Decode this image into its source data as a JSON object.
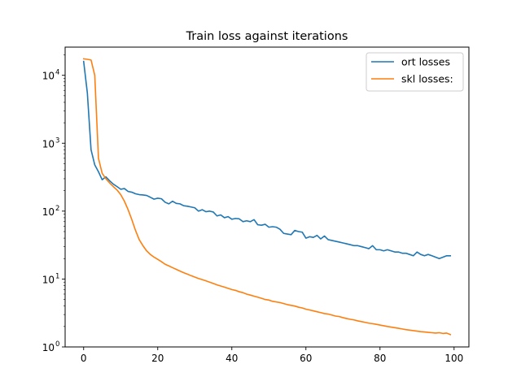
{
  "chart_data": {
    "type": "line",
    "title": "Train loss against iterations",
    "xlabel": "",
    "ylabel": "",
    "xlim": [
      -5,
      104
    ],
    "ylim": [
      1,
      26000
    ],
    "yscale": "log",
    "grid": false,
    "legend_position": "top-right",
    "x_ticks": [
      0,
      20,
      40,
      60,
      80,
      100
    ],
    "y_ticks": [
      {
        "value": 1,
        "base": "10",
        "exp": "0"
      },
      {
        "value": 10,
        "base": "10",
        "exp": "1"
      },
      {
        "value": 100,
        "base": "10",
        "exp": "2"
      },
      {
        "value": 1000,
        "base": "10",
        "exp": "3"
      },
      {
        "value": 10000,
        "base": "10",
        "exp": "4"
      }
    ],
    "series": [
      {
        "name": "ort losses",
        "color": "#1f77b4",
        "x": [
          0,
          1,
          2,
          3,
          4,
          5,
          6,
          7,
          8,
          9,
          10,
          11,
          12,
          13,
          14,
          15,
          16,
          17,
          18,
          19,
          20,
          21,
          22,
          23,
          24,
          25,
          26,
          27,
          28,
          29,
          30,
          31,
          32,
          33,
          34,
          35,
          36,
          37,
          38,
          39,
          40,
          41,
          42,
          43,
          44,
          45,
          46,
          47,
          48,
          49,
          50,
          51,
          52,
          53,
          54,
          55,
          56,
          57,
          58,
          59,
          60,
          61,
          62,
          63,
          64,
          65,
          66,
          67,
          68,
          69,
          70,
          71,
          72,
          73,
          74,
          75,
          76,
          77,
          78,
          79,
          80,
          81,
          82,
          83,
          84,
          85,
          86,
          87,
          88,
          89,
          90,
          91,
          92,
          93,
          94,
          95,
          96,
          97,
          98,
          99
        ],
        "y": [
          16000,
          5500,
          800,
          480,
          380,
          290,
          320,
          280,
          250,
          230,
          210,
          215,
          195,
          190,
          180,
          175,
          173,
          170,
          160,
          150,
          155,
          152,
          135,
          128,
          140,
          130,
          128,
          120,
          118,
          115,
          112,
          100,
          105,
          98,
          100,
          97,
          85,
          88,
          80,
          83,
          76,
          78,
          77,
          70,
          72,
          70,
          75,
          63,
          62,
          64,
          58,
          59,
          58,
          54,
          47,
          46,
          45,
          52,
          50,
          49,
          40,
          42,
          41,
          44,
          39,
          43,
          38,
          37,
          36,
          35,
          34,
          33,
          32,
          31,
          31,
          30,
          29,
          28,
          31,
          27,
          27,
          26,
          27,
          26,
          25,
          25,
          24,
          24,
          23,
          22,
          25,
          23,
          22,
          23,
          22,
          21,
          20,
          21,
          22,
          22
        ]
      },
      {
        "name": "skl losses:",
        "color": "#ff7f0e",
        "x": [
          0,
          1,
          2,
          3,
          4,
          5,
          6,
          7,
          8,
          9,
          10,
          11,
          12,
          13,
          14,
          15,
          16,
          17,
          18,
          19,
          20,
          21,
          22,
          23,
          24,
          25,
          26,
          27,
          28,
          29,
          30,
          31,
          32,
          33,
          34,
          35,
          36,
          37,
          38,
          39,
          40,
          41,
          42,
          43,
          44,
          45,
          46,
          47,
          48,
          49,
          50,
          51,
          52,
          53,
          54,
          55,
          56,
          57,
          58,
          59,
          60,
          61,
          62,
          63,
          64,
          65,
          66,
          67,
          68,
          69,
          70,
          71,
          72,
          73,
          74,
          75,
          76,
          77,
          78,
          79,
          80,
          81,
          82,
          83,
          84,
          85,
          86,
          87,
          88,
          89,
          90,
          91,
          92,
          93,
          94,
          95,
          96,
          97,
          98,
          99
        ],
        "y": [
          17500,
          17200,
          16800,
          10000,
          600,
          360,
          300,
          260,
          230,
          205,
          175,
          140,
          105,
          75,
          52,
          38,
          31,
          26,
          23,
          21,
          19.5,
          18,
          16.5,
          15.6,
          14.7,
          13.9,
          13.1,
          12.4,
          11.8,
          11.2,
          10.7,
          10.2,
          9.8,
          9.4,
          9.0,
          8.6,
          8.2,
          7.9,
          7.6,
          7.3,
          7.0,
          6.8,
          6.5,
          6.3,
          6.0,
          5.8,
          5.6,
          5.4,
          5.2,
          5.0,
          4.9,
          4.7,
          4.6,
          4.5,
          4.35,
          4.2,
          4.1,
          4.0,
          3.85,
          3.75,
          3.6,
          3.5,
          3.4,
          3.3,
          3.2,
          3.1,
          3.05,
          2.95,
          2.85,
          2.8,
          2.7,
          2.62,
          2.55,
          2.5,
          2.42,
          2.36,
          2.3,
          2.24,
          2.2,
          2.15,
          2.1,
          2.05,
          2.0,
          1.96,
          1.92,
          1.88,
          1.84,
          1.8,
          1.77,
          1.74,
          1.71,
          1.68,
          1.66,
          1.64,
          1.62,
          1.6,
          1.62,
          1.58,
          1.6,
          1.52
        ]
      }
    ]
  }
}
